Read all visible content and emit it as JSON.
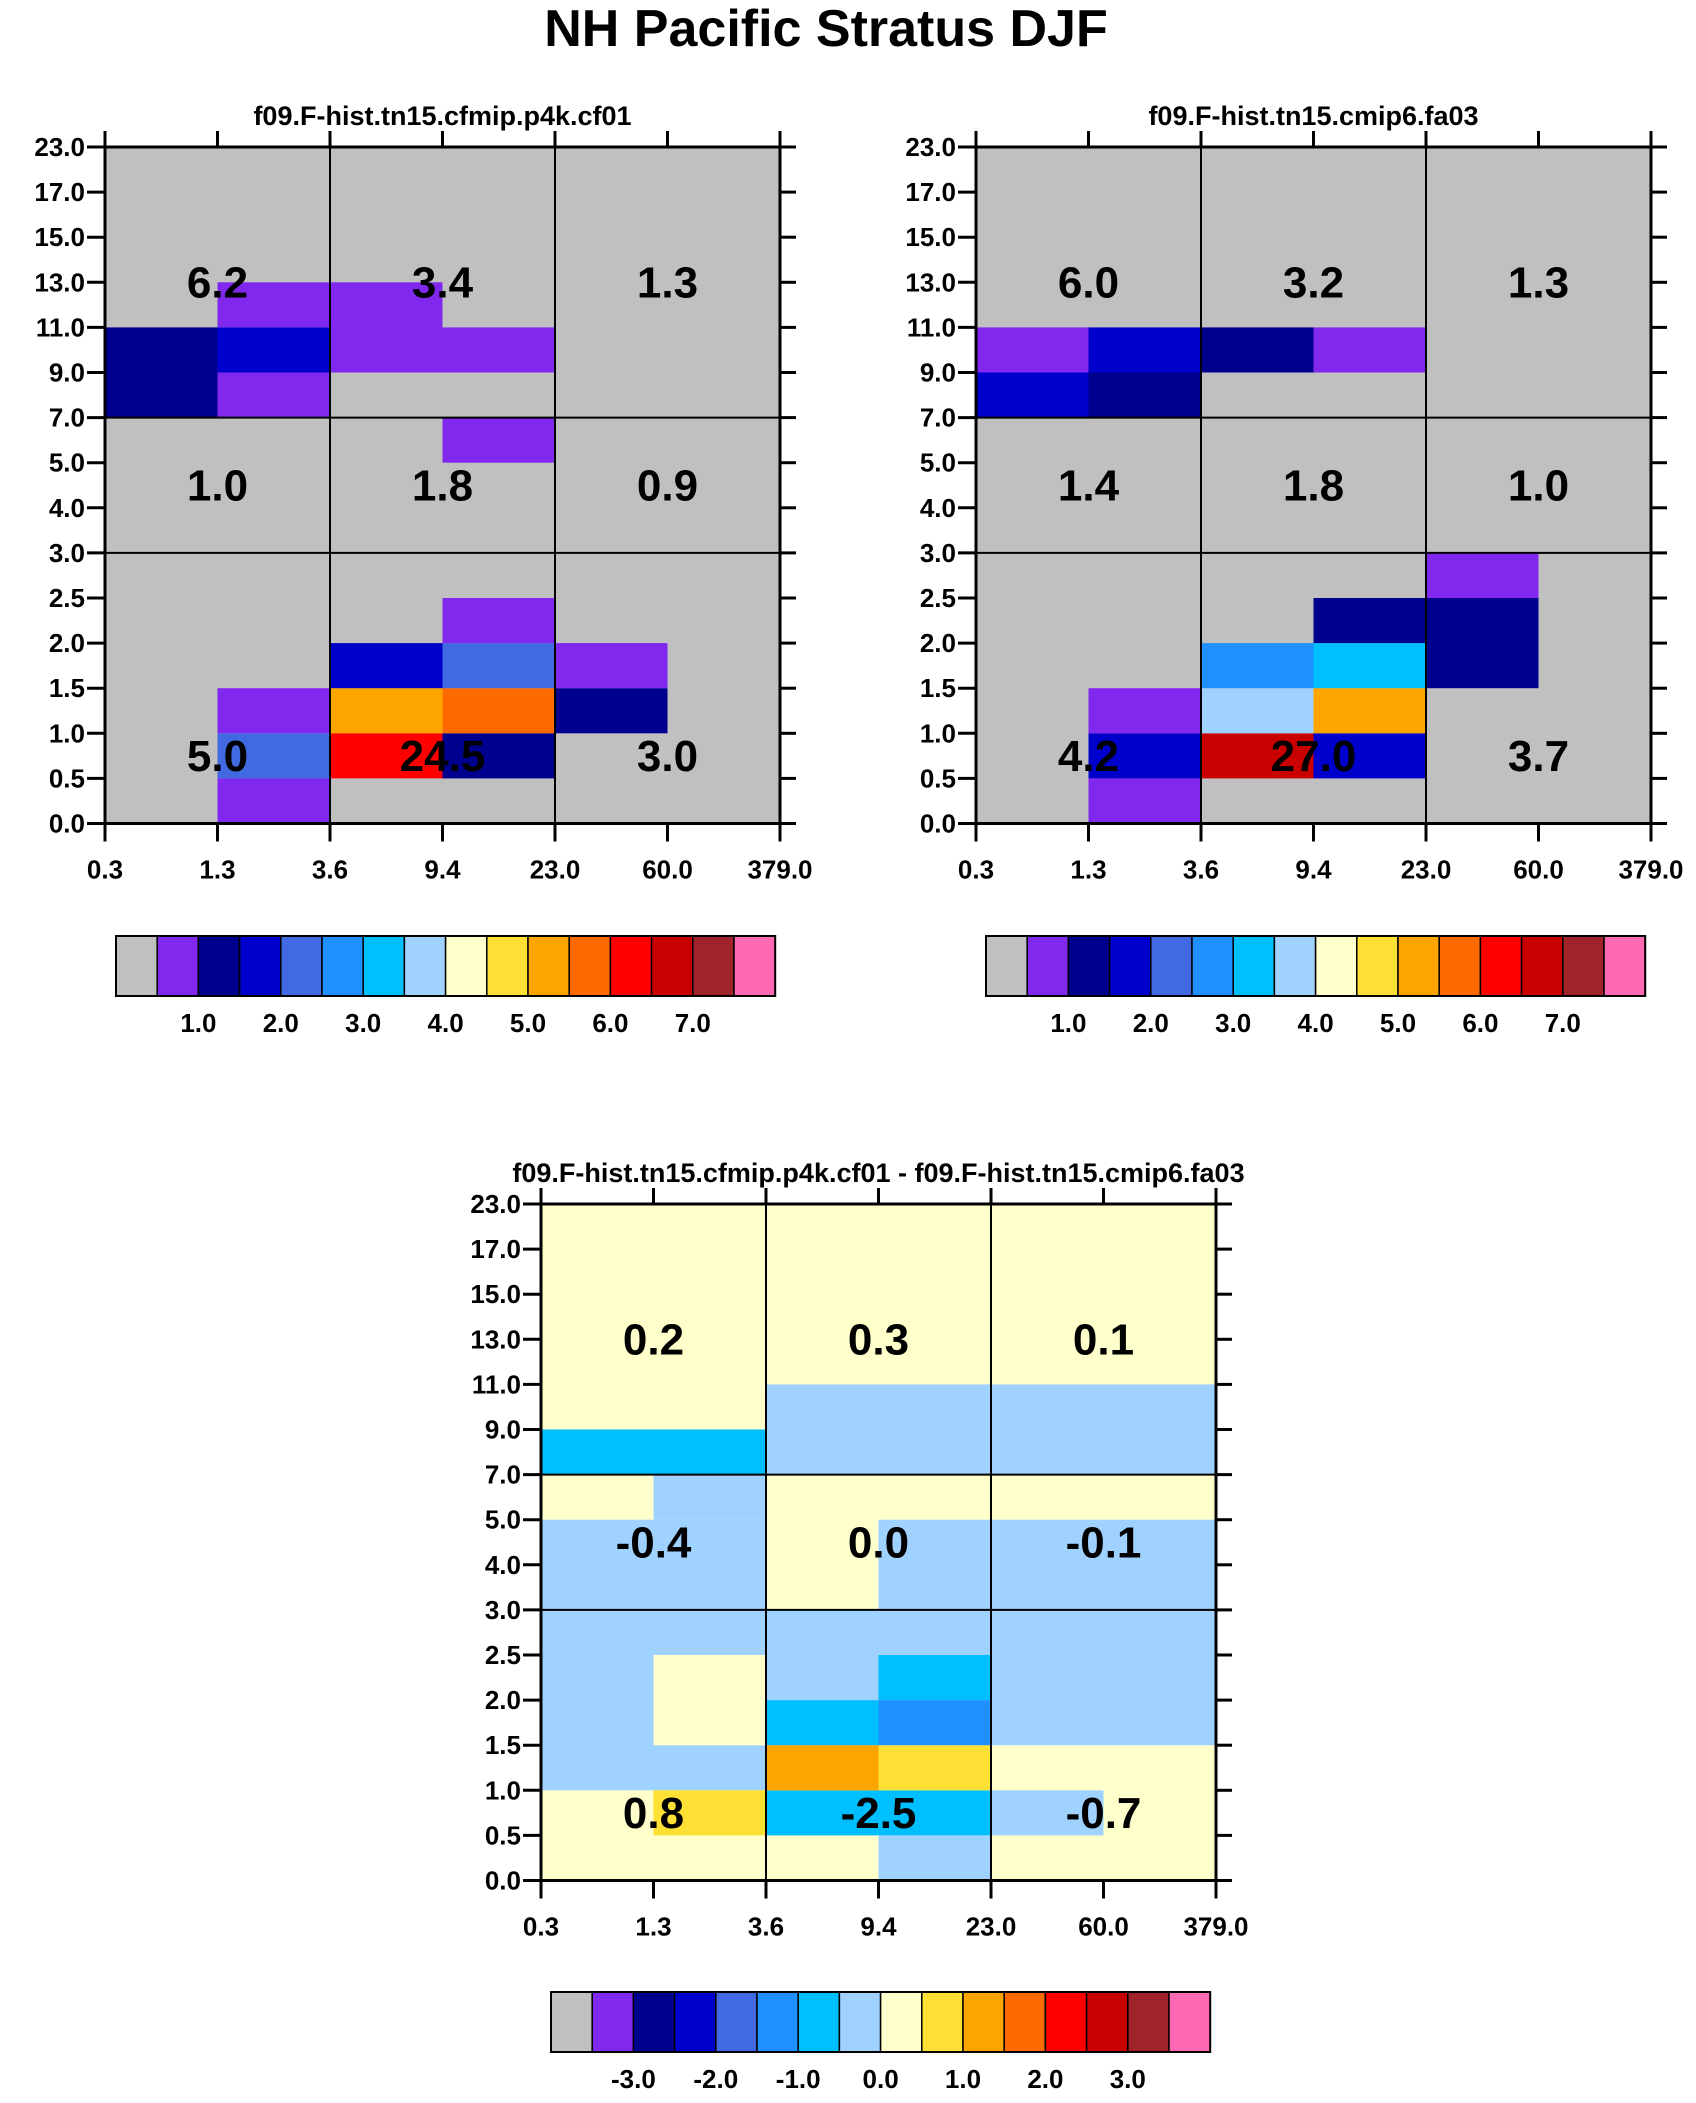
{
  "title": "NH Pacific Stratus DJF",
  "colors": {
    "missing": "#c0c0c0",
    "grid_line": "#000000",
    "abs_palette": [
      "#c0c0c0",
      "#8128ee",
      "#00008f",
      "#0000cd",
      "#4169e1",
      "#1e90ff",
      "#00bfff",
      "#a0d2ff",
      "#ffffcc",
      "#ffe135",
      "#ffa500",
      "#ff6a00",
      "#ff0000",
      "#c80000",
      "#a0222a",
      "#ff69b4"
    ],
    "diff_palette": [
      "#c0c0c0",
      "#8128ee",
      "#00008f",
      "#0000cd",
      "#4169e1",
      "#1e90ff",
      "#00bfff",
      "#a0d2ff",
      "#ffffcc",
      "#ffe135",
      "#ffa500",
      "#ff6a00",
      "#ff0000",
      "#c80000",
      "#a0222a",
      "#ff69b4"
    ]
  },
  "chart_data": [
    {
      "type": "heatmap",
      "id": "panel-cfmip",
      "title": "f09.F-hist.tn15.cfmip.p4k.cf01",
      "xlabel": "",
      "ylabel": "",
      "x_ticks": [
        "0.3",
        "1.3",
        "3.6",
        "9.4",
        "23.0",
        "60.0",
        "379.0"
      ],
      "y_ticks": [
        "0.0",
        "0.5",
        "1.0",
        "1.5",
        "2.0",
        "2.5",
        "3.0",
        "4.0",
        "5.0",
        "7.0",
        "9.0",
        "11.0",
        "13.0",
        "15.0",
        "17.0",
        "23.0"
      ],
      "cells": [
        {
          "x": [
            1,
            2
          ],
          "y": [
            0,
            1
          ],
          "c": 1
        },
        {
          "x": [
            1,
            2
          ],
          "y": [
            1,
            2
          ],
          "c": 4
        },
        {
          "x": [
            1,
            2
          ],
          "y": [
            2,
            3
          ],
          "c": 1
        },
        {
          "x": [
            2,
            3
          ],
          "y": [
            1,
            2
          ],
          "c": 12
        },
        {
          "x": [
            2,
            3
          ],
          "y": [
            2,
            3
          ],
          "c": 10
        },
        {
          "x": [
            2,
            3
          ],
          "y": [
            3,
            4
          ],
          "c": 3
        },
        {
          "x": [
            3,
            4
          ],
          "y": [
            1,
            2
          ],
          "c": 2
        },
        {
          "x": [
            3,
            4
          ],
          "y": [
            2,
            3
          ],
          "c": 11
        },
        {
          "x": [
            3,
            4
          ],
          "y": [
            3,
            4
          ],
          "c": 4
        },
        {
          "x": [
            3,
            4
          ],
          "y": [
            4,
            5
          ],
          "c": 1
        },
        {
          "x": [
            4,
            5
          ],
          "y": [
            2,
            3
          ],
          "c": 2
        },
        {
          "x": [
            4,
            5
          ],
          "y": [
            3,
            4
          ],
          "c": 1
        },
        {
          "x": [
            3,
            4
          ],
          "y": [
            8,
            9
          ],
          "c": 1
        },
        {
          "x": [
            0,
            1
          ],
          "y": [
            9,
            11
          ],
          "c": 2
        },
        {
          "x": [
            1,
            2
          ],
          "y": [
            9,
            10
          ],
          "c": 1
        },
        {
          "x": [
            1,
            2
          ],
          "y": [
            10,
            11
          ],
          "c": 3
        },
        {
          "x": [
            1,
            2
          ],
          "y": [
            11,
            12
          ],
          "c": 1
        },
        {
          "x": [
            2,
            3
          ],
          "y": [
            10,
            12
          ],
          "c": 1
        },
        {
          "x": [
            3,
            4
          ],
          "y": [
            10,
            11
          ],
          "c": 1
        }
      ],
      "region_values": [
        {
          "x": 1,
          "y": 1.5,
          "label": "5.0"
        },
        {
          "x": 3,
          "y": 1.5,
          "label": "24.5"
        },
        {
          "x": 5,
          "y": 1.5,
          "label": "3.0"
        },
        {
          "x": 1,
          "y": 7.5,
          "label": "1.0"
        },
        {
          "x": 3,
          "y": 7.5,
          "label": "1.8"
        },
        {
          "x": 5,
          "y": 7.5,
          "label": "0.9"
        },
        {
          "x": 1,
          "y": 12,
          "label": "6.2"
        },
        {
          "x": 3,
          "y": 12,
          "label": "3.4"
        },
        {
          "x": 5,
          "y": 12,
          "label": "1.3"
        }
      ],
      "colorbar_labels": [
        {
          "i": 2,
          "label": "1.0"
        },
        {
          "i": 4,
          "label": "2.0"
        },
        {
          "i": 6,
          "label": "3.0"
        },
        {
          "i": 8,
          "label": "4.0"
        },
        {
          "i": 10,
          "label": "5.0"
        },
        {
          "i": 12,
          "label": "6.0"
        },
        {
          "i": 14,
          "label": "7.0"
        }
      ]
    },
    {
      "type": "heatmap",
      "id": "panel-cmip6",
      "title": "f09.F-hist.tn15.cmip6.fa03",
      "xlabel": "",
      "ylabel": "",
      "x_ticks": [
        "0.3",
        "1.3",
        "3.6",
        "9.4",
        "23.0",
        "60.0",
        "379.0"
      ],
      "y_ticks": [
        "0.0",
        "0.5",
        "1.0",
        "1.5",
        "2.0",
        "2.5",
        "3.0",
        "4.0",
        "5.0",
        "7.0",
        "9.0",
        "11.0",
        "13.0",
        "15.0",
        "17.0",
        "23.0"
      ],
      "cells": [
        {
          "x": [
            1,
            2
          ],
          "y": [
            0,
            1
          ],
          "c": 1
        },
        {
          "x": [
            1,
            2
          ],
          "y": [
            1,
            2
          ],
          "c": 3
        },
        {
          "x": [
            1,
            2
          ],
          "y": [
            2,
            3
          ],
          "c": 1
        },
        {
          "x": [
            2,
            3
          ],
          "y": [
            1,
            2
          ],
          "c": 13
        },
        {
          "x": [
            2,
            3
          ],
          "y": [
            2,
            3
          ],
          "c": 7
        },
        {
          "x": [
            2,
            3
          ],
          "y": [
            3,
            4
          ],
          "c": 5
        },
        {
          "x": [
            3,
            4
          ],
          "y": [
            1,
            2
          ],
          "c": 3
        },
        {
          "x": [
            3,
            4
          ],
          "y": [
            2,
            3
          ],
          "c": 10
        },
        {
          "x": [
            3,
            4
          ],
          "y": [
            3,
            4
          ],
          "c": 6
        },
        {
          "x": [
            3,
            4
          ],
          "y": [
            4,
            5
          ],
          "c": 2
        },
        {
          "x": [
            4,
            5
          ],
          "y": [
            3,
            5
          ],
          "c": 2
        },
        {
          "x": [
            4,
            5
          ],
          "y": [
            5,
            6
          ],
          "c": 1
        },
        {
          "x": [
            0,
            1
          ],
          "y": [
            9,
            10
          ],
          "c": 3
        },
        {
          "x": [
            0,
            1
          ],
          "y": [
            10,
            11
          ],
          "c": 1
        },
        {
          "x": [
            1,
            2
          ],
          "y": [
            9,
            10
          ],
          "c": 2
        },
        {
          "x": [
            1,
            2
          ],
          "y": [
            10,
            11
          ],
          "c": 3
        },
        {
          "x": [
            2,
            3
          ],
          "y": [
            10,
            11
          ],
          "c": 2
        },
        {
          "x": [
            3,
            4
          ],
          "y": [
            10,
            11
          ],
          "c": 1
        }
      ],
      "region_values": [
        {
          "x": 1,
          "y": 1.5,
          "label": "4.2"
        },
        {
          "x": 3,
          "y": 1.5,
          "label": "27.0"
        },
        {
          "x": 5,
          "y": 1.5,
          "label": "3.7"
        },
        {
          "x": 1,
          "y": 7.5,
          "label": "1.4"
        },
        {
          "x": 3,
          "y": 7.5,
          "label": "1.8"
        },
        {
          "x": 5,
          "y": 7.5,
          "label": "1.0"
        },
        {
          "x": 1,
          "y": 12,
          "label": "6.0"
        },
        {
          "x": 3,
          "y": 12,
          "label": "3.2"
        },
        {
          "x": 5,
          "y": 12,
          "label": "1.3"
        }
      ],
      "colorbar_labels": [
        {
          "i": 2,
          "label": "1.0"
        },
        {
          "i": 4,
          "label": "2.0"
        },
        {
          "i": 6,
          "label": "3.0"
        },
        {
          "i": 8,
          "label": "4.0"
        },
        {
          "i": 10,
          "label": "5.0"
        },
        {
          "i": 12,
          "label": "6.0"
        },
        {
          "i": 14,
          "label": "7.0"
        }
      ]
    },
    {
      "type": "heatmap",
      "id": "panel-diff",
      "title": "f09.F-hist.tn15.cfmip.p4k.cf01 - f09.F-hist.tn15.cmip6.fa03",
      "xlabel": "",
      "ylabel": "",
      "x_ticks": [
        "0.3",
        "1.3",
        "3.6",
        "9.4",
        "23.0",
        "60.0",
        "379.0"
      ],
      "y_ticks": [
        "0.0",
        "0.5",
        "1.0",
        "1.5",
        "2.0",
        "2.5",
        "3.0",
        "4.0",
        "5.0",
        "7.0",
        "9.0",
        "11.0",
        "13.0",
        "15.0",
        "17.0",
        "23.0"
      ],
      "background_color_index": 8,
      "cells": [
        {
          "x": [
            0,
            1
          ],
          "y": [
            2,
            6
          ],
          "c": 7
        },
        {
          "x": [
            1,
            2
          ],
          "y": [
            2,
            3
          ],
          "c": 7
        },
        {
          "x": [
            1,
            2
          ],
          "y": [
            3,
            5
          ],
          "c": 8
        },
        {
          "x": [
            1,
            2
          ],
          "y": [
            5,
            6
          ],
          "c": 7
        },
        {
          "x": [
            1,
            2
          ],
          "y": [
            1,
            2
          ],
          "c": 9
        },
        {
          "x": [
            2,
            4
          ],
          "y": [
            1,
            2
          ],
          "c": 6
        },
        {
          "x": [
            2,
            3
          ],
          "y": [
            2,
            3
          ],
          "c": 10
        },
        {
          "x": [
            3,
            4
          ],
          "y": [
            2,
            3
          ],
          "c": 9
        },
        {
          "x": [
            2,
            3
          ],
          "y": [
            3,
            4
          ],
          "c": 6
        },
        {
          "x": [
            3,
            4
          ],
          "y": [
            3,
            4
          ],
          "c": 5
        },
        {
          "x": [
            3,
            4
          ],
          "y": [
            4,
            5
          ],
          "c": 6
        },
        {
          "x": [
            2,
            4
          ],
          "y": [
            5,
            6
          ],
          "c": 7
        },
        {
          "x": [
            2,
            3
          ],
          "y": [
            4,
            5
          ],
          "c": 7
        },
        {
          "x": [
            3,
            4
          ],
          "y": [
            0,
            1
          ],
          "c": 7
        },
        {
          "x": [
            4,
            6
          ],
          "y": [
            3,
            6
          ],
          "c": 7
        },
        {
          "x": [
            4,
            5
          ],
          "y": [
            1,
            2
          ],
          "c": 7
        },
        {
          "x": [
            0,
            2
          ],
          "y": [
            6,
            8
          ],
          "c": 7
        },
        {
          "x": [
            1,
            2
          ],
          "y": [
            8,
            9
          ],
          "c": 7
        },
        {
          "x": [
            3,
            6
          ],
          "y": [
            6,
            8
          ],
          "c": 7
        },
        {
          "x": [
            0,
            2
          ],
          "y": [
            9,
            10
          ],
          "c": 6
        },
        {
          "x": [
            2,
            6
          ],
          "y": [
            9,
            11
          ],
          "c": 7
        }
      ],
      "region_values": [
        {
          "x": 1,
          "y": 1.5,
          "label": "0.8"
        },
        {
          "x": 3,
          "y": 1.5,
          "label": "-2.5"
        },
        {
          "x": 5,
          "y": 1.5,
          "label": "-0.7"
        },
        {
          "x": 1,
          "y": 7.5,
          "label": "-0.4"
        },
        {
          "x": 3,
          "y": 7.5,
          "label": "0.0"
        },
        {
          "x": 5,
          "y": 7.5,
          "label": "-0.1"
        },
        {
          "x": 1,
          "y": 12,
          "label": "0.2"
        },
        {
          "x": 3,
          "y": 12,
          "label": "0.3"
        },
        {
          "x": 5,
          "y": 12,
          "label": "0.1"
        }
      ],
      "colorbar_labels": [
        {
          "i": 2,
          "label": "-3.0"
        },
        {
          "i": 4,
          "label": "-2.0"
        },
        {
          "i": 6,
          "label": "-1.0"
        },
        {
          "i": 8,
          "label": "0.0"
        },
        {
          "i": 10,
          "label": "1.0"
        },
        {
          "i": 12,
          "label": "2.0"
        },
        {
          "i": 14,
          "label": "3.0"
        }
      ]
    }
  ]
}
